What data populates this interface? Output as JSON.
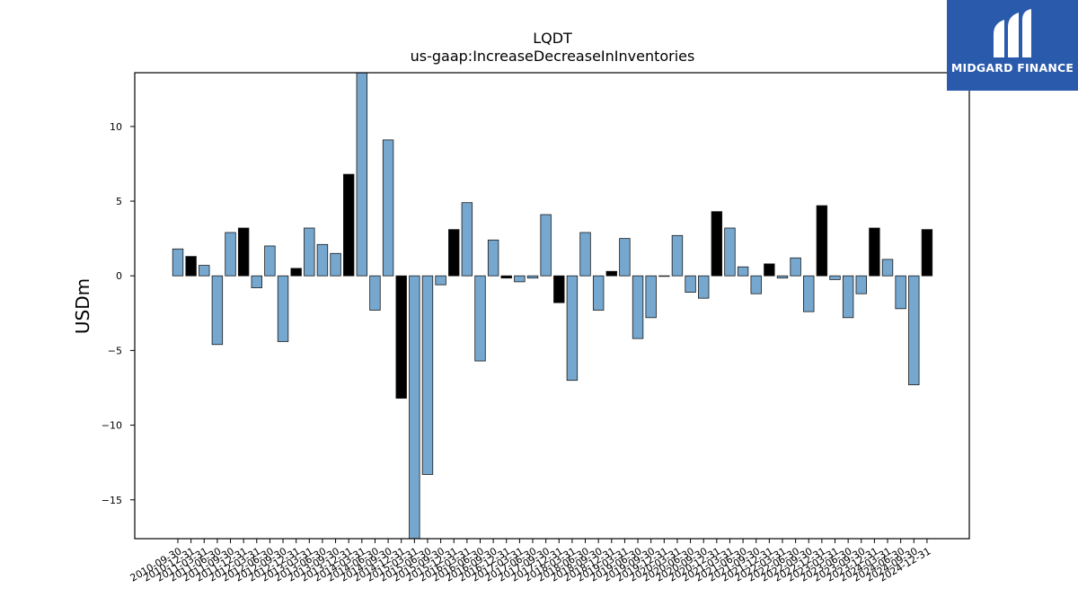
{
  "chart_data": {
    "type": "bar",
    "title": "LQDT",
    "subtitle": "us-gaap:IncreaseDecreaseInInventories",
    "xlabel": "",
    "ylabel": "USDm",
    "ylim": [
      -17.6,
      13.6
    ],
    "yticks": [
      10,
      5,
      0,
      -5,
      -10,
      -15
    ],
    "ytick_labels": [
      "10",
      "5",
      "0",
      "−5",
      "−10",
      "−15"
    ],
    "grid": false,
    "colors": {
      "default": "#75a7cf",
      "highlight": "#000000",
      "edge": "#1a1a1a"
    },
    "categories": [
      "2010-09-30",
      "2010-12-31",
      "2011-03-31",
      "2011-06-30",
      "2011-09-30",
      "2011-12-31",
      "2012-03-31",
      "2012-06-30",
      "2012-09-30",
      "2012-12-31",
      "2013-03-31",
      "2013-06-30",
      "2013-09-30",
      "2013-12-31",
      "2014-03-31",
      "2014-06-30",
      "2014-09-30",
      "2014-12-31",
      "2015-03-31",
      "2015-06-30",
      "2015-09-30",
      "2015-12-31",
      "2016-03-31",
      "2016-06-30",
      "2016-09-30",
      "2016-12-31",
      "2017-03-31",
      "2017-06-30",
      "2017-09-30",
      "2017-12-31",
      "2018-03-31",
      "2018-06-30",
      "2018-09-30",
      "2018-12-31",
      "2019-03-31",
      "2019-06-30",
      "2019-09-30",
      "2019-12-31",
      "2020-03-31",
      "2020-06-30",
      "2020-09-30",
      "2020-12-31",
      "2021-03-31",
      "2021-06-30",
      "2021-09-30",
      "2021-12-31",
      "2022-03-31",
      "2022-06-30",
      "2022-09-30",
      "2022-12-31",
      "2023-03-31",
      "2023-06-30",
      "2023-09-30",
      "2023-12-31",
      "2024-03-31",
      "2024-06-30",
      "2024-09-30",
      "2024-12-31"
    ],
    "tick_labels": [
      "2010-09-30",
      "2010-12-31",
      "2011-03-31",
      "2011-06-30",
      "2011-09-30",
      "2011-12-31",
      "2012-03-31",
      "2012-06-30",
      "2012-09-30",
      "2012-12-31",
      "2013-03-31",
      "2013-06-30",
      "2013-09-30",
      "2013-12-31",
      "2014-03-31",
      "2014-06-30",
      "2014-09-30",
      "2014-12-31",
      "2015-03-31",
      "2015-06-30",
      "2015-09-30",
      "2015-12-31",
      "2016-03-31",
      "2016-06-30",
      "2016-09-30",
      "2016-12-31",
      "2017-03-31",
      "2017-06-30",
      "2017-09-30",
      "2017-12-31",
      "2018-03-31",
      "2018-06-30",
      "2018-09-30",
      "2018-12-31",
      "2019-03-31",
      "2019-06-30",
      "2019-09-30",
      "2019-12-31",
      "2020-03-31",
      "2020-06-30",
      "2020-09-30",
      "2020-12-31",
      "2021-03-31",
      "2021-06-30",
      "2021-09-30",
      "2021-12-31",
      "2022-03-31",
      "2022-06-30",
      "2022-09-30",
      "2022-12-31",
      "2023-03-31",
      "2023-06-30",
      "2023-09-30",
      "2023-12-31",
      "2024-03-31",
      "2024-06-30",
      "2024-09-30",
      "2024-12-31"
    ],
    "values": [
      1.8,
      1.3,
      0.7,
      -4.6,
      2.9,
      3.2,
      -0.8,
      2.0,
      -4.4,
      0.5,
      3.2,
      2.1,
      1.5,
      6.8,
      14.6,
      -2.3,
      9.1,
      -8.2,
      -17.9,
      -13.3,
      -0.6,
      3.1,
      4.9,
      -5.7,
      2.4,
      -0.15,
      -0.4,
      -0.15,
      4.1,
      -1.8,
      -7.0,
      2.9,
      -2.3,
      0.3,
      2.5,
      -4.2,
      -2.8,
      0.0,
      2.7,
      -1.1,
      -1.5,
      4.3,
      3.2,
      0.6,
      -1.2,
      0.8,
      -0.15,
      1.2,
      -2.4,
      4.7,
      -0.25,
      -2.8,
      -1.2,
      3.2,
      1.1,
      -2.2,
      -7.3,
      3.1
    ],
    "highlight": [
      false,
      true,
      false,
      false,
      false,
      true,
      false,
      false,
      false,
      true,
      false,
      false,
      false,
      true,
      false,
      false,
      false,
      true,
      false,
      false,
      false,
      true,
      false,
      false,
      false,
      true,
      false,
      false,
      false,
      true,
      false,
      false,
      false,
      true,
      false,
      false,
      false,
      true,
      false,
      false,
      false,
      true,
      false,
      false,
      false,
      true,
      false,
      false,
      false,
      true,
      false,
      false,
      false,
      true,
      false,
      false,
      false,
      true
    ]
  },
  "logo": {
    "text": "MIDGARD FINANCE"
  }
}
